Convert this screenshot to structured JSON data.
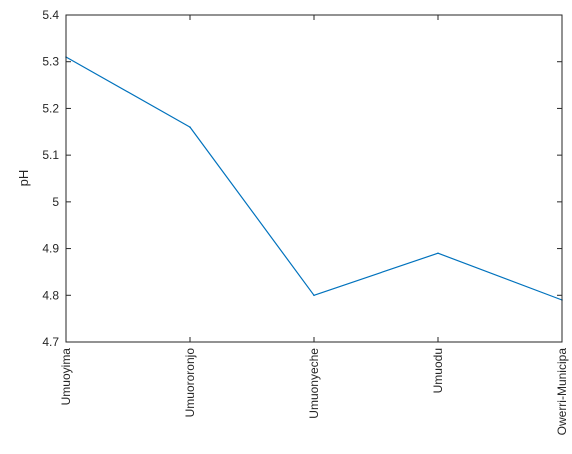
{
  "chart_data": {
    "type": "line",
    "title": "",
    "xlabel": "",
    "ylabel": "pH",
    "categories": [
      "Umuoyima",
      "Umuororonjo",
      "Umuonyeche",
      "Umuodu",
      "Owerri-Municipa"
    ],
    "series": [
      {
        "values": [
          5.31,
          5.16,
          4.8,
          4.89,
          4.79
        ],
        "color": "#0072BD"
      }
    ],
    "ylim": [
      4.7,
      5.4
    ],
    "yticks": [
      "4.7",
      "4.8",
      "4.9",
      "5",
      "5.1",
      "5.2",
      "5.3",
      "5.4"
    ],
    "grid": false,
    "box": true
  }
}
